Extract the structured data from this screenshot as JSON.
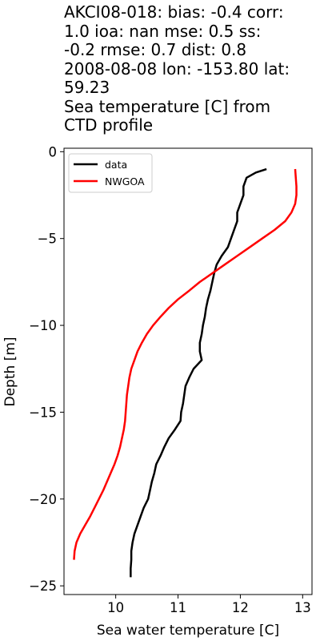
{
  "chart_data": {
    "type": "line",
    "title_lines": [
      "AKCI08-018: bias: -0.4  corr:",
      "1.0  ioa: nan  mse: 0.5  ss:",
      "-0.2  rmse: 0.7  dist: 0.8",
      "2008-08-08 lon: -153.80 lat:",
      "59.23",
      "Sea temperature [C] from",
      "CTD profile"
    ],
    "xlabel": "Sea water temperature [C]",
    "ylabel": "Depth [m]",
    "xlim": [
      9.17,
      13.15
    ],
    "ylim": [
      -25.5,
      0.2
    ],
    "xticks": [
      10,
      11,
      12,
      13
    ],
    "yticks": [
      0,
      -5,
      -10,
      -15,
      -20,
      -25
    ],
    "grid": false,
    "legend": {
      "position": "top-left"
    },
    "series": [
      {
        "name": "data",
        "color": "#000000",
        "points": [
          [
            12.42,
            -1.0
          ],
          [
            12.25,
            -1.2
          ],
          [
            12.1,
            -1.5
          ],
          [
            12.05,
            -2.0
          ],
          [
            12.05,
            -2.5
          ],
          [
            12.0,
            -3.0
          ],
          [
            11.95,
            -3.5
          ],
          [
            11.95,
            -4.0
          ],
          [
            11.9,
            -4.5
          ],
          [
            11.85,
            -5.0
          ],
          [
            11.8,
            -5.5
          ],
          [
            11.7,
            -6.0
          ],
          [
            11.62,
            -6.5
          ],
          [
            11.58,
            -7.0
          ],
          [
            11.55,
            -7.5
          ],
          [
            11.52,
            -8.0
          ],
          [
            11.48,
            -8.5
          ],
          [
            11.45,
            -9.0
          ],
          [
            11.43,
            -9.5
          ],
          [
            11.4,
            -10.0
          ],
          [
            11.38,
            -10.5
          ],
          [
            11.35,
            -11.0
          ],
          [
            11.35,
            -11.5
          ],
          [
            11.38,
            -12.0
          ],
          [
            11.25,
            -12.5
          ],
          [
            11.18,
            -13.0
          ],
          [
            11.12,
            -13.5
          ],
          [
            11.1,
            -14.0
          ],
          [
            11.08,
            -14.5
          ],
          [
            11.05,
            -15.0
          ],
          [
            11.04,
            -15.5
          ],
          [
            10.95,
            -16.0
          ],
          [
            10.85,
            -16.5
          ],
          [
            10.78,
            -17.0
          ],
          [
            10.72,
            -17.5
          ],
          [
            10.65,
            -18.0
          ],
          [
            10.62,
            -18.5
          ],
          [
            10.58,
            -19.0
          ],
          [
            10.55,
            -19.5
          ],
          [
            10.52,
            -20.0
          ],
          [
            10.45,
            -20.5
          ],
          [
            10.4,
            -21.0
          ],
          [
            10.35,
            -21.5
          ],
          [
            10.3,
            -22.0
          ],
          [
            10.27,
            -22.5
          ],
          [
            10.25,
            -23.0
          ],
          [
            10.25,
            -23.5
          ],
          [
            10.24,
            -24.0
          ],
          [
            10.24,
            -24.5
          ]
        ]
      },
      {
        "name": "NWGOA",
        "color": "#ff0000",
        "points": [
          [
            12.88,
            -1.0
          ],
          [
            12.89,
            -1.5
          ],
          [
            12.9,
            -2.0
          ],
          [
            12.9,
            -2.5
          ],
          [
            12.88,
            -3.0
          ],
          [
            12.82,
            -3.5
          ],
          [
            12.72,
            -4.0
          ],
          [
            12.55,
            -4.5
          ],
          [
            12.35,
            -5.0
          ],
          [
            12.15,
            -5.5
          ],
          [
            11.95,
            -6.0
          ],
          [
            11.75,
            -6.5
          ],
          [
            11.55,
            -7.0
          ],
          [
            11.35,
            -7.5
          ],
          [
            11.18,
            -8.0
          ],
          [
            11.0,
            -8.5
          ],
          [
            10.85,
            -9.0
          ],
          [
            10.72,
            -9.5
          ],
          [
            10.6,
            -10.0
          ],
          [
            10.5,
            -10.5
          ],
          [
            10.42,
            -11.0
          ],
          [
            10.35,
            -11.5
          ],
          [
            10.3,
            -12.0
          ],
          [
            10.25,
            -12.5
          ],
          [
            10.22,
            -13.0
          ],
          [
            10.2,
            -13.5
          ],
          [
            10.18,
            -14.0
          ],
          [
            10.17,
            -14.5
          ],
          [
            10.16,
            -15.0
          ],
          [
            10.15,
            -15.5
          ],
          [
            10.13,
            -16.0
          ],
          [
            10.1,
            -16.5
          ],
          [
            10.07,
            -17.0
          ],
          [
            10.03,
            -17.5
          ],
          [
            9.98,
            -18.0
          ],
          [
            9.92,
            -18.5
          ],
          [
            9.86,
            -19.0
          ],
          [
            9.8,
            -19.5
          ],
          [
            9.73,
            -20.0
          ],
          [
            9.66,
            -20.5
          ],
          [
            9.59,
            -21.0
          ],
          [
            9.51,
            -21.5
          ],
          [
            9.43,
            -22.0
          ],
          [
            9.37,
            -22.5
          ],
          [
            9.34,
            -23.0
          ],
          [
            9.33,
            -23.5
          ]
        ]
      }
    ]
  }
}
